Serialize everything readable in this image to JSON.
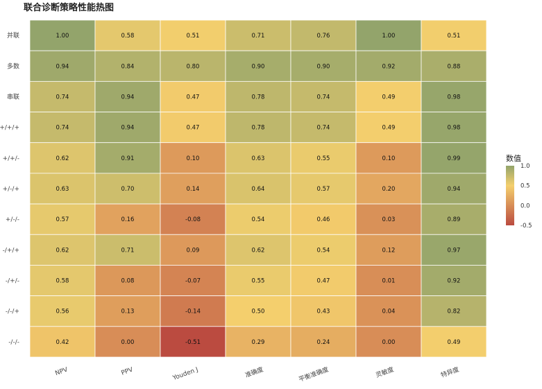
{
  "chart_data": {
    "type": "heatmap",
    "title": "联合诊断策略性能热图",
    "x_labels": [
      "NPV",
      "PPV",
      "Youden J",
      "准确度",
      "平衡准确度",
      "灵敏度",
      "特异度"
    ],
    "y_labels": [
      "并联",
      "多数",
      "串联",
      "+/+/+",
      "+/+/-",
      "+/-/+",
      "+/-/-",
      "-/+/+",
      "-/+/-",
      "-/-/+",
      "-/-/-"
    ],
    "values": [
      [
        1.0,
        0.58,
        0.51,
        0.71,
        0.76,
        1.0,
        0.51
      ],
      [
        0.94,
        0.84,
        0.8,
        0.9,
        0.9,
        0.92,
        0.88
      ],
      [
        0.74,
        0.94,
        0.47,
        0.78,
        0.74,
        0.49,
        0.98
      ],
      [
        0.74,
        0.94,
        0.47,
        0.78,
        0.74,
        0.49,
        0.98
      ],
      [
        0.62,
        0.91,
        0.1,
        0.63,
        0.55,
        0.1,
        0.99
      ],
      [
        0.63,
        0.7,
        0.14,
        0.64,
        0.57,
        0.2,
        0.94
      ],
      [
        0.57,
        0.16,
        -0.08,
        0.54,
        0.46,
        0.03,
        0.89
      ],
      [
        0.62,
        0.71,
        0.09,
        0.62,
        0.54,
        0.12,
        0.97
      ],
      [
        0.58,
        0.08,
        -0.07,
        0.55,
        0.47,
        0.01,
        0.92
      ],
      [
        0.56,
        0.13,
        -0.14,
        0.5,
        0.43,
        0.04,
        0.82
      ],
      [
        0.42,
        0.0,
        -0.51,
        0.29,
        0.24,
        0.0,
        0.49
      ]
    ],
    "value_labels": [
      [
        "1.00",
        "0.58",
        "0.51",
        "0.71",
        "0.76",
        "1.00",
        "0.51"
      ],
      [
        "0.94",
        "0.84",
        "0.80",
        "0.90",
        "0.90",
        "0.92",
        "0.88"
      ],
      [
        "0.74",
        "0.94",
        "0.47",
        "0.78",
        "0.74",
        "0.49",
        "0.98"
      ],
      [
        "0.74",
        "0.94",
        "0.47",
        "0.78",
        "0.74",
        "0.49",
        "0.98"
      ],
      [
        "0.62",
        "0.91",
        "0.10",
        "0.63",
        "0.55",
        "0.10",
        "0.99"
      ],
      [
        "0.63",
        "0.70",
        "0.14",
        "0.64",
        "0.57",
        "0.20",
        "0.94"
      ],
      [
        "0.57",
        "0.16",
        "-0.08",
        "0.54",
        "0.46",
        "0.03",
        "0.89"
      ],
      [
        "0.62",
        "0.71",
        "0.09",
        "0.62",
        "0.54",
        "0.12",
        "0.97"
      ],
      [
        "0.58",
        "0.08",
        "-0.07",
        "0.55",
        "0.47",
        "0.01",
        "0.92"
      ],
      [
        "0.56",
        "0.13",
        "-0.14",
        "0.50",
        "0.43",
        "0.04",
        "0.82"
      ],
      [
        "0.42",
        "0.00",
        "-0.51",
        "0.29",
        "0.24",
        "0.00",
        "0.49"
      ]
    ],
    "color_scale": {
      "min": -0.5,
      "mid": 0.5,
      "max": 1.0,
      "low_color": "#bb4b40",
      "mid_color": "#f4cf6d",
      "high_color": "#93a46b"
    },
    "legend": {
      "title": "数值",
      "ticks": [
        "1.0",
        "0.5",
        "0.0",
        "-0.5"
      ],
      "tick_values": [
        1.0,
        0.5,
        0.0,
        -0.5
      ],
      "placement": "right"
    }
  }
}
